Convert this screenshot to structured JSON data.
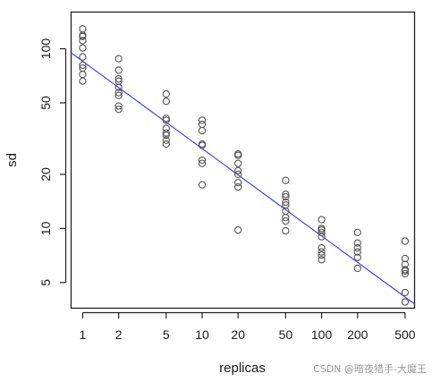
{
  "chart_data": {
    "type": "scatter",
    "xlabel": "replicas",
    "ylabel": "sd",
    "x_scale": "log",
    "y_scale": "log",
    "xlim": [
      0.8,
      600
    ],
    "ylim": [
      3.6,
      160
    ],
    "x_ticks": [
      1,
      2,
      5,
      10,
      20,
      50,
      100,
      200,
      500
    ],
    "x_tick_labels": [
      "1",
      "2",
      "5",
      "10",
      "20",
      "50",
      "100",
      "200",
      "500"
    ],
    "y_ticks": [
      5,
      10,
      20,
      50,
      100
    ],
    "y_tick_labels": [
      "5",
      "10",
      "20",
      "50",
      "100"
    ],
    "grid": false,
    "point_color": "#555555",
    "line_color": "#4040ff",
    "points": [
      {
        "x": 1,
        "y": 129
      },
      {
        "x": 1,
        "y": 119
      },
      {
        "x": 1,
        "y": 117
      },
      {
        "x": 1,
        "y": 111
      },
      {
        "x": 1,
        "y": 101
      },
      {
        "x": 1,
        "y": 90
      },
      {
        "x": 1,
        "y": 81
      },
      {
        "x": 1,
        "y": 78
      },
      {
        "x": 1,
        "y": 72
      },
      {
        "x": 1,
        "y": 66
      },
      {
        "x": 2,
        "y": 88
      },
      {
        "x": 2,
        "y": 76
      },
      {
        "x": 2,
        "y": 68
      },
      {
        "x": 2,
        "y": 66
      },
      {
        "x": 2,
        "y": 61
      },
      {
        "x": 2,
        "y": 57
      },
      {
        "x": 2,
        "y": 55
      },
      {
        "x": 2,
        "y": 48
      },
      {
        "x": 2,
        "y": 46
      },
      {
        "x": 5,
        "y": 56
      },
      {
        "x": 5,
        "y": 51
      },
      {
        "x": 5,
        "y": 41
      },
      {
        "x": 5,
        "y": 40
      },
      {
        "x": 5,
        "y": 36
      },
      {
        "x": 5,
        "y": 34
      },
      {
        "x": 5,
        "y": 33
      },
      {
        "x": 5,
        "y": 31
      },
      {
        "x": 5,
        "y": 29.5
      },
      {
        "x": 10,
        "y": 40
      },
      {
        "x": 10,
        "y": 38
      },
      {
        "x": 10,
        "y": 35
      },
      {
        "x": 10,
        "y": 29.5
      },
      {
        "x": 10,
        "y": 29
      },
      {
        "x": 10,
        "y": 24
      },
      {
        "x": 10,
        "y": 23
      },
      {
        "x": 10,
        "y": 17.5
      },
      {
        "x": 20,
        "y": 26
      },
      {
        "x": 20,
        "y": 25.5
      },
      {
        "x": 20,
        "y": 23
      },
      {
        "x": 20,
        "y": 21
      },
      {
        "x": 20,
        "y": 20
      },
      {
        "x": 20,
        "y": 18
      },
      {
        "x": 20,
        "y": 17
      },
      {
        "x": 20,
        "y": 9.8
      },
      {
        "x": 50,
        "y": 18.5
      },
      {
        "x": 50,
        "y": 15.5
      },
      {
        "x": 50,
        "y": 15
      },
      {
        "x": 50,
        "y": 14
      },
      {
        "x": 50,
        "y": 13.5
      },
      {
        "x": 50,
        "y": 12.5
      },
      {
        "x": 50,
        "y": 11.5
      },
      {
        "x": 50,
        "y": 11
      },
      {
        "x": 50,
        "y": 9.7
      },
      {
        "x": 100,
        "y": 11.2
      },
      {
        "x": 100,
        "y": 10
      },
      {
        "x": 100,
        "y": 9.8
      },
      {
        "x": 100,
        "y": 9.5
      },
      {
        "x": 100,
        "y": 9
      },
      {
        "x": 100,
        "y": 7.8
      },
      {
        "x": 100,
        "y": 7.4
      },
      {
        "x": 100,
        "y": 7.1
      },
      {
        "x": 100,
        "y": 6.7
      },
      {
        "x": 200,
        "y": 9.5
      },
      {
        "x": 200,
        "y": 8.3
      },
      {
        "x": 200,
        "y": 7.8
      },
      {
        "x": 200,
        "y": 7.4
      },
      {
        "x": 200,
        "y": 6.9
      },
      {
        "x": 200,
        "y": 6.0
      },
      {
        "x": 500,
        "y": 8.5
      },
      {
        "x": 500,
        "y": 6.8
      },
      {
        "x": 500,
        "y": 6.3
      },
      {
        "x": 500,
        "y": 5.9
      },
      {
        "x": 500,
        "y": 5.8
      },
      {
        "x": 500,
        "y": 5.6
      },
      {
        "x": 500,
        "y": 4.4
      },
      {
        "x": 500,
        "y": 3.9
      }
    ],
    "fit_line": {
      "x": [
        0.8,
        600
      ],
      "y": [
        95,
        3.8
      ]
    }
  },
  "watermark": "CSDN @暗夜猎手-大魔王"
}
